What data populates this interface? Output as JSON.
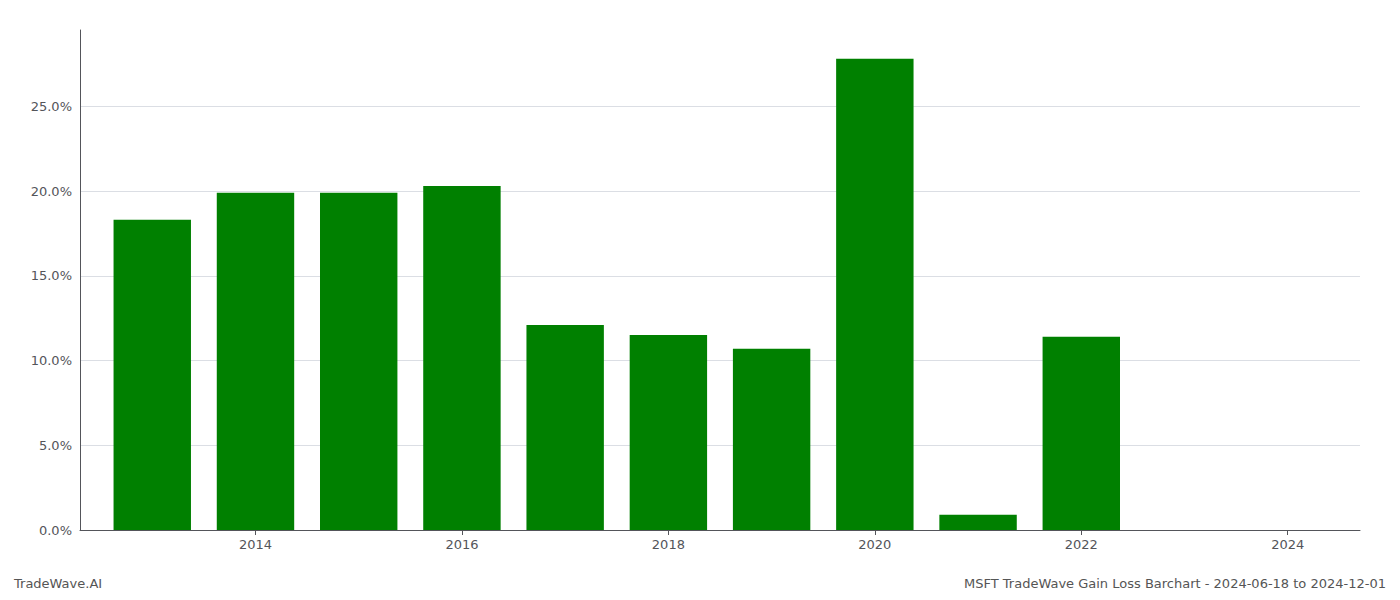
{
  "chart_data": {
    "type": "bar",
    "x": [
      2013,
      2014,
      2015,
      2016,
      2017,
      2018,
      2019,
      2020,
      2021,
      2022,
      2023
    ],
    "values": [
      0.183,
      0.199,
      0.199,
      0.203,
      0.121,
      0.115,
      0.107,
      0.278,
      0.009,
      0.114,
      0.0
    ],
    "color": "#008000",
    "xlim": [
      2012.3,
      2024.7
    ],
    "xticks": [
      2014,
      2016,
      2018,
      2020,
      2022,
      2024
    ],
    "ylim": [
      0,
      0.295
    ],
    "yticks": [
      {
        "value": 0.0,
        "label": "0.0%"
      },
      {
        "value": 0.05,
        "label": "5.0%"
      },
      {
        "value": 0.1,
        "label": "10.0%"
      },
      {
        "value": 0.15,
        "label": "15.0%"
      },
      {
        "value": 0.2,
        "label": "20.0%"
      },
      {
        "value": 0.25,
        "label": "25.0%"
      }
    ],
    "grid": true,
    "annotations": [
      "TradeWave.AI",
      "MSFT TradeWave Gain Loss Barchart - 2024-06-18 to 2024-12-01"
    ]
  }
}
